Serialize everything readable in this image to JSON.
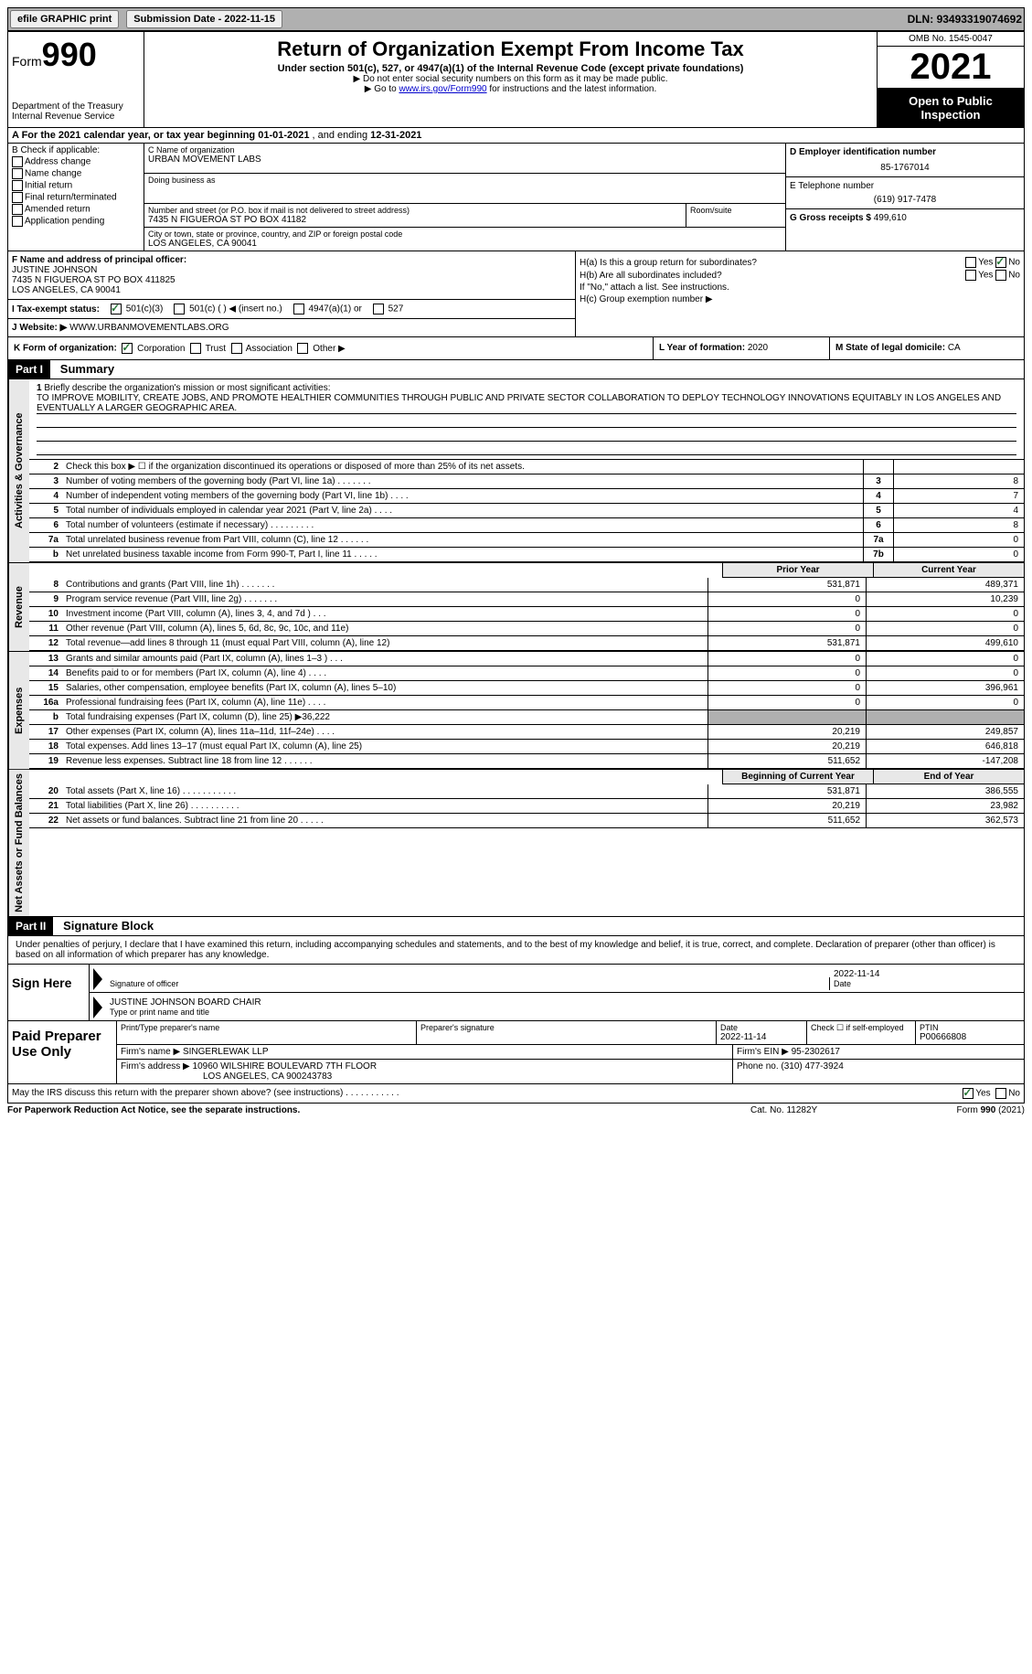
{
  "topbar": {
    "efile": "efile GRAPHIC print",
    "sub_date_label": "Submission Date - ",
    "sub_date": "2022-11-15",
    "dln_label": "DLN: ",
    "dln": "93493319074692"
  },
  "header": {
    "form_word": "Form",
    "form_num": "990",
    "dept": "Department of the Treasury",
    "irs": "Internal Revenue Service",
    "title": "Return of Organization Exempt From Income Tax",
    "subtitle": "Under section 501(c), 527, or 4947(a)(1) of the Internal Revenue Code (except private foundations)",
    "note1": "▶ Do not enter social security numbers on this form as it may be made public.",
    "note2_pre": "▶ Go to ",
    "note2_link": "www.irs.gov/Form990",
    "note2_post": " for instructions and the latest information.",
    "omb": "OMB No. 1545-0047",
    "year": "2021",
    "open": "Open to Public Inspection"
  },
  "row_a": {
    "label": "A For the 2021 calendar year, or tax year beginning ",
    "begin": "01-01-2021",
    "mid": " , and ending ",
    "end": "12-31-2021"
  },
  "col_b": {
    "label": "B Check if applicable:",
    "addr": "Address change",
    "name": "Name change",
    "initial": "Initial return",
    "final": "Final return/terminated",
    "amended": "Amended return",
    "app": "Application pending"
  },
  "col_c": {
    "name_label": "C Name of organization",
    "name": "URBAN MOVEMENT LABS",
    "dba_label": "Doing business as",
    "addr_label": "Number and street (or P.O. box if mail is not delivered to street address)",
    "addr": "7435 N FIGUEROA ST PO BOX 41182",
    "room_label": "Room/suite",
    "city_label": "City or town, state or province, country, and ZIP or foreign postal code",
    "city": "LOS ANGELES, CA  90041"
  },
  "col_d": {
    "label": "D Employer identification number",
    "ein": "85-1767014"
  },
  "col_e": {
    "label": "E Telephone number",
    "phone": "(619) 917-7478"
  },
  "col_g": {
    "label": "G Gross receipts $ ",
    "amount": "499,610"
  },
  "col_f": {
    "label": "F Name and address of principal officer:",
    "name": "JUSTINE JOHNSON",
    "addr1": "7435 N FIGUEROA ST PO BOX 411825",
    "addr2": "LOS ANGELES, CA  90041"
  },
  "col_h": {
    "ha_label": "H(a)  Is this a group return for subordinates?",
    "hb_label": "H(b)  Are all subordinates included?",
    "hb_note": "If \"No,\" attach a list. See instructions.",
    "hc_label": "H(c)  Group exemption number ▶",
    "yes": "Yes",
    "no": "No"
  },
  "row_i": {
    "label": "I  Tax-exempt status:",
    "c3": "501(c)(3)",
    "c_other": "501(c) (  ) ◀ (insert no.)",
    "a1": "4947(a)(1) or",
    "s527": "527"
  },
  "row_j": {
    "label": "J  Website: ▶ ",
    "url": "WWW.URBANMOVEMENTLABS.ORG"
  },
  "row_k": {
    "label": "K Form of organization:",
    "corp": "Corporation",
    "trust": "Trust",
    "assoc": "Association",
    "other": "Other ▶"
  },
  "row_l": {
    "label": "L Year of formation: ",
    "val": "2020"
  },
  "row_m": {
    "label": "M State of legal domicile: ",
    "val": "CA"
  },
  "part1": {
    "tag": "Part I",
    "title": "Summary"
  },
  "vtabs": {
    "act": "Activities & Governance",
    "rev": "Revenue",
    "exp": "Expenses",
    "net": "Net Assets or Fund Balances"
  },
  "mission": {
    "num": "1",
    "label": "Briefly describe the organization's mission or most significant activities:",
    "text": "TO IMPROVE MOBILITY, CREATE JOBS, AND PROMOTE HEALTHIER COMMUNITIES THROUGH PUBLIC AND PRIVATE SECTOR COLLABORATION TO DEPLOY TECHNOLOGY INNOVATIONS EQUITABLY IN LOS ANGELES AND EVENTUALLY A LARGER GEOGRAPHIC AREA."
  },
  "lines_single": [
    {
      "num": "2",
      "desc": "Check this box ▶ ☐ if the organization discontinued its operations or disposed of more than 25% of its net assets.",
      "box": "",
      "val": ""
    },
    {
      "num": "3",
      "desc": "Number of voting members of the governing body (Part VI, line 1a)   .    .    .    .    .    .    .",
      "box": "3",
      "val": "8"
    },
    {
      "num": "4",
      "desc": "Number of independent voting members of the governing body (Part VI, line 1b)   .    .    .    .",
      "box": "4",
      "val": "7"
    },
    {
      "num": "5",
      "desc": "Total number of individuals employed in calendar year 2021 (Part V, line 2a)   .    .    .    .",
      "box": "5",
      "val": "4"
    },
    {
      "num": "6",
      "desc": "Total number of volunteers (estimate if necessary)   .    .    .    .    .    .    .    .    .",
      "box": "6",
      "val": "8"
    },
    {
      "num": "7a",
      "desc": "Total unrelated business revenue from Part VIII, column (C), line 12   .    .    .    .    .    .",
      "box": "7a",
      "val": "0"
    },
    {
      "num": "b",
      "desc": "Net unrelated business taxable income from Form 990-T, Part I, line 11   .    .    .    .    .",
      "box": "7b",
      "val": "0"
    }
  ],
  "two_col_hdr": {
    "prior": "Prior Year",
    "curr": "Current Year"
  },
  "rev_lines": [
    {
      "num": "8",
      "desc": "Contributions and grants (Part VIII, line 1h)   .    .    .    .    .    .    .",
      "prior": "531,871",
      "curr": "489,371"
    },
    {
      "num": "9",
      "desc": "Program service revenue (Part VIII, line 2g)   .    .    .    .    .    .    .",
      "prior": "0",
      "curr": "10,239"
    },
    {
      "num": "10",
      "desc": "Investment income (Part VIII, column (A), lines 3, 4, and 7d )   .    .    .",
      "prior": "0",
      "curr": "0"
    },
    {
      "num": "11",
      "desc": "Other revenue (Part VIII, column (A), lines 5, 6d, 8c, 9c, 10c, and 11e)",
      "prior": "0",
      "curr": "0"
    },
    {
      "num": "12",
      "desc": "Total revenue—add lines 8 through 11 (must equal Part VIII, column (A), line 12)",
      "prior": "531,871",
      "curr": "499,610"
    }
  ],
  "exp_lines": [
    {
      "num": "13",
      "desc": "Grants and similar amounts paid (Part IX, column (A), lines 1–3 )   .    .    .",
      "prior": "0",
      "curr": "0"
    },
    {
      "num": "14",
      "desc": "Benefits paid to or for members (Part IX, column (A), line 4)   .    .    .    .",
      "prior": "0",
      "curr": "0"
    },
    {
      "num": "15",
      "desc": "Salaries, other compensation, employee benefits (Part IX, column (A), lines 5–10)",
      "prior": "0",
      "curr": "396,961"
    },
    {
      "num": "16a",
      "desc": "Professional fundraising fees (Part IX, column (A), line 11e)   .    .    .    .",
      "prior": "0",
      "curr": "0"
    },
    {
      "num": "b",
      "desc": "Total fundraising expenses (Part IX, column (D), line 25) ▶36,222",
      "prior": "SHADE",
      "curr": "SHADE"
    },
    {
      "num": "17",
      "desc": "Other expenses (Part IX, column (A), lines 11a–11d, 11f–24e)   .    .    .    .",
      "prior": "20,219",
      "curr": "249,857"
    },
    {
      "num": "18",
      "desc": "Total expenses. Add lines 13–17 (must equal Part IX, column (A), line 25)",
      "prior": "20,219",
      "curr": "646,818"
    },
    {
      "num": "19",
      "desc": "Revenue less expenses. Subtract line 18 from line 12   .    .    .    .    .    .",
      "prior": "511,652",
      "curr": "-147,208"
    }
  ],
  "net_hdr": {
    "prior": "Beginning of Current Year",
    "curr": "End of Year"
  },
  "net_lines": [
    {
      "num": "20",
      "desc": "Total assets (Part X, line 16)   .    .    .    .    .    .    .    .    .    .    .",
      "prior": "531,871",
      "curr": "386,555"
    },
    {
      "num": "21",
      "desc": "Total liabilities (Part X, line 26)   .    .    .    .    .    .    .    .    .    .",
      "prior": "20,219",
      "curr": "23,982"
    },
    {
      "num": "22",
      "desc": "Net assets or fund balances. Subtract line 21 from line 20   .    .    .    .    .",
      "prior": "511,652",
      "curr": "362,573"
    }
  ],
  "part2": {
    "tag": "Part II",
    "title": "Signature Block"
  },
  "sig": {
    "decl": "Under penalties of perjury, I declare that I have examined this return, including accompanying schedules and statements, and to the best of my knowledge and belief, it is true, correct, and complete. Declaration of preparer (other than officer) is based on all information of which preparer has any knowledge.",
    "sign_here": "Sign Here",
    "sig_officer": "Signature of officer",
    "date": "Date",
    "date_val": "2022-11-14",
    "name_title": "JUSTINE JOHNSON  BOARD CHAIR",
    "name_title_lbl": "Type or print name and title"
  },
  "prep": {
    "label": "Paid Preparer Use Only",
    "print_name_lbl": "Print/Type preparer's name",
    "sig_lbl": "Preparer's signature",
    "date_lbl": "Date",
    "date_val": "2022-11-14",
    "check_lbl": "Check ☐ if self-employed",
    "ptin_lbl": "PTIN",
    "ptin": "P00666808",
    "firm_name_lbl": "Firm's name   ▶ ",
    "firm_name": "SINGERLEWAK LLP",
    "firm_ein_lbl": "Firm's EIN ▶ ",
    "firm_ein": "95-2302617",
    "firm_addr_lbl": "Firm's address ▶ ",
    "firm_addr1": "10960 WILSHIRE BOULEVARD 7TH FLOOR",
    "firm_addr2": "LOS ANGELES, CA  900243783",
    "phone_lbl": "Phone no. ",
    "phone": "(310) 477-3924"
  },
  "discuss": {
    "q": "May the IRS discuss this return with the preparer shown above? (see instructions)   .    .    .    .    .    .    .    .    .    .    .",
    "yes": "Yes",
    "no": "No"
  },
  "footer": {
    "left": "For Paperwork Reduction Act Notice, see the separate instructions.",
    "mid": "Cat. No. 11282Y",
    "right": "Form 990 (2021)"
  }
}
